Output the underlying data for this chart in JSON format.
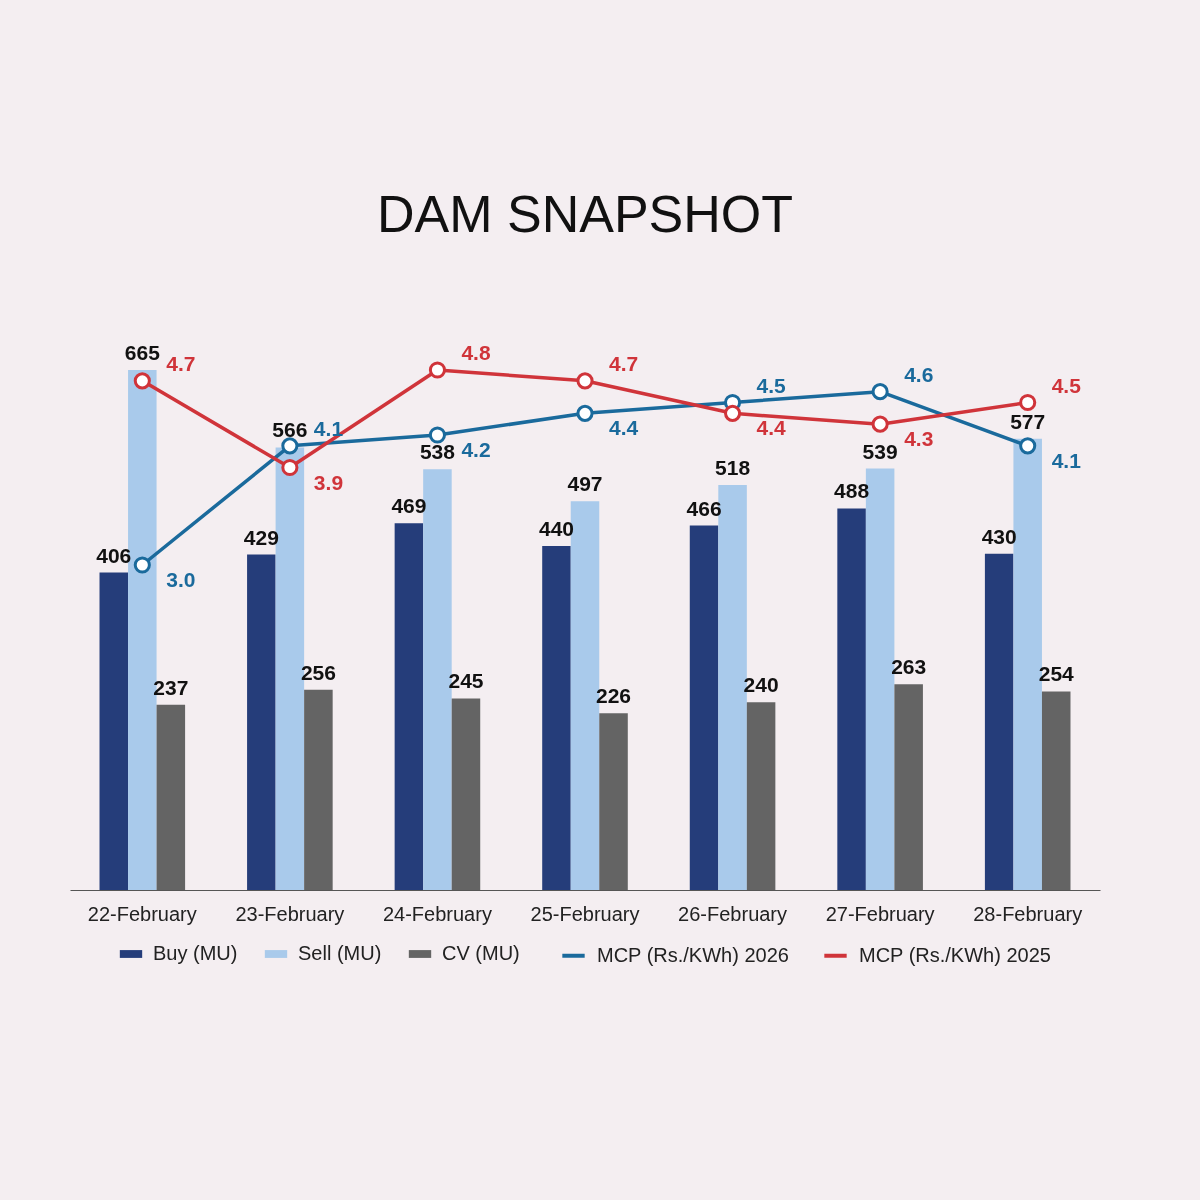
{
  "chart_data": {
    "type": "bar",
    "title": "DAM SNAPSHOT",
    "categories": [
      "22-February",
      "23-February",
      "24-February",
      "25-February",
      "26-February",
      "27-February",
      "28-February"
    ],
    "series": [
      {
        "name": "Buy (MU)",
        "color": "#253d7a",
        "values": [
          406,
          429,
          469,
          440,
          466,
          488,
          430
        ]
      },
      {
        "name": "Sell (MU)",
        "color": "#a9caeb",
        "values": [
          665,
          566,
          538,
          497,
          518,
          539,
          577
        ]
      },
      {
        "name": "CV (MU)",
        "color": "#646464",
        "values": [
          237,
          256,
          245,
          226,
          240,
          263,
          254
        ]
      },
      {
        "name": "MCP (Rs./KWh) 2026",
        "type": "line",
        "axis": "y2",
        "color": "#1a6a9c",
        "values": [
          3.0,
          4.1,
          4.2,
          4.4,
          4.5,
          4.6,
          4.1
        ],
        "value_labels": [
          "3.0",
          "4.1",
          "4.2",
          "4.4",
          "4.5",
          "4.6",
          "4.1"
        ]
      },
      {
        "name": "MCP (Rs./KWh) 2025",
        "type": "line",
        "axis": "y2",
        "color": "#d0343a",
        "values": [
          4.7,
          3.9,
          4.8,
          4.7,
          4.4,
          4.3,
          4.5
        ],
        "value_labels": [
          "4.7",
          "3.9",
          "4.8",
          "4.7",
          "4.4",
          "4.3",
          "4.5"
        ]
      }
    ],
    "data_labels": true,
    "marker": "circle",
    "line_style": "solid",
    "legend": "bottom"
  }
}
